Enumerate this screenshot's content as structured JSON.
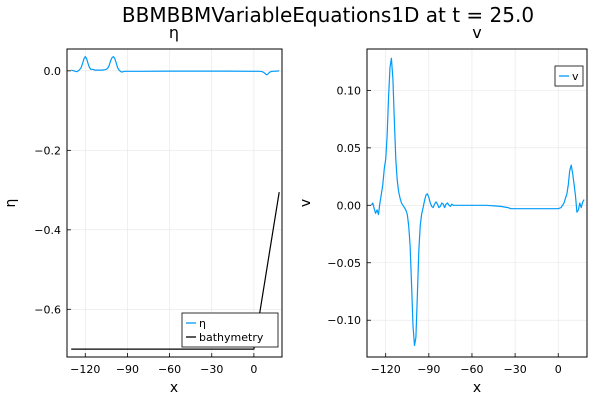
{
  "figure": {
    "title": "BBMBBMVariableEquations1D at t = 25.0"
  },
  "colors": {
    "series": "#009af9",
    "bathymetry": "#000000",
    "grid": "#e6e6e6",
    "frame": "#000000"
  },
  "chart_data": [
    {
      "type": "line",
      "title": "η",
      "xlabel": "x",
      "ylabel": "η",
      "xlim": [
        -133,
        20
      ],
      "ylim": [
        -0.72,
        0.055
      ],
      "xticks": [
        -120,
        -90,
        -60,
        -30,
        0
      ],
      "xtick_labels": [
        "−120",
        "−90",
        "−60",
        "−30",
        "0"
      ],
      "yticks": [
        0,
        -0.2,
        -0.4,
        -0.6
      ],
      "ytick_labels": [
        "0.0",
        "−0.2",
        "−0.4",
        "−0.6"
      ],
      "grid": true,
      "legend_position": "bottom-right",
      "series": [
        {
          "name": "η",
          "color": "#009af9",
          "x": [
            -130,
            -128,
            -126,
            -125,
            -124,
            -123,
            -122,
            -121,
            -120,
            -119,
            -118,
            -117,
            -116,
            -115,
            -114,
            -113,
            -112,
            -110,
            -108,
            -106,
            -105,
            -104,
            -103,
            -102,
            -101,
            -100,
            -99,
            -98,
            -97,
            -96,
            -95,
            -94,
            -93,
            -92,
            -90,
            -80,
            -60,
            -40,
            -20,
            0,
            2,
            4,
            6,
            7,
            8,
            9,
            10,
            11,
            12,
            13,
            14,
            16,
            18
          ],
          "y": [
            0.002,
            0.0,
            -0.002,
            0.0,
            0.003,
            0.008,
            0.018,
            0.03,
            0.036,
            0.03,
            0.018,
            0.008,
            0.004,
            0.004,
            0.003,
            0.002,
            0.002,
            0.002,
            0.002,
            0.003,
            0.004,
            0.007,
            0.014,
            0.025,
            0.033,
            0.036,
            0.031,
            0.02,
            0.008,
            0.002,
            -0.001,
            -0.003,
            -0.002,
            -0.001,
            -0.001,
            -0.001,
            -0.0005,
            -0.0005,
            -0.0005,
            -0.001,
            -0.001,
            -0.001,
            -0.002,
            -0.004,
            -0.007,
            -0.01,
            -0.008,
            -0.004,
            -0.002,
            -0.001,
            -0.001,
            -0.0005,
            0.0
          ]
        },
        {
          "name": "bathymetry",
          "color": "#000000",
          "x": [
            -130,
            0,
            18
          ],
          "y": [
            -0.7,
            -0.7,
            -0.305
          ]
        }
      ]
    },
    {
      "type": "line",
      "title": "v",
      "xlabel": "x",
      "ylabel": "v",
      "xlim": [
        -133,
        20
      ],
      "ylim": [
        -0.132,
        0.136
      ],
      "xticks": [
        -120,
        -90,
        -60,
        -30,
        0
      ],
      "xtick_labels": [
        "−120",
        "−90",
        "−60",
        "−30",
        "0"
      ],
      "yticks": [
        0.1,
        0.05,
        0,
        -0.05,
        -0.1
      ],
      "ytick_labels": [
        "0.10",
        "0.05",
        "0.00",
        "−0.05",
        "−0.10"
      ],
      "grid": true,
      "legend_position": "top-right",
      "series": [
        {
          "name": "v",
          "color": "#009af9",
          "x": [
            -130,
            -129,
            -128,
            -127,
            -126,
            -125,
            -124,
            -123,
            -122,
            -121,
            -120,
            -119,
            -118,
            -117,
            -116,
            -115,
            -114,
            -113,
            -112,
            -111,
            -110,
            -109,
            -108,
            -107,
            -106,
            -105,
            -104,
            -103,
            -102,
            -101,
            -100,
            -99,
            -98,
            -97,
            -96,
            -95,
            -94,
            -93,
            -92,
            -91,
            -90,
            -89,
            -88,
            -87,
            -86,
            -85,
            -84,
            -83,
            -82,
            -81,
            -80,
            -79,
            -78,
            -77,
            -76,
            -75,
            -74,
            -73,
            -72,
            -70,
            -60,
            -50,
            -40,
            -35,
            -33,
            -30,
            -20,
            -10,
            0,
            2,
            4,
            5,
            6,
            7,
            8,
            9,
            10,
            11,
            12,
            13,
            14,
            15,
            16,
            17,
            18
          ],
          "y": [
            0.0,
            0.002,
            -0.003,
            -0.007,
            -0.004,
            -0.008,
            0.002,
            0.01,
            0.018,
            0.032,
            0.04,
            0.06,
            0.095,
            0.12,
            0.128,
            0.11,
            0.075,
            0.04,
            0.022,
            0.012,
            0.006,
            0.002,
            0.0,
            -0.002,
            -0.004,
            -0.008,
            -0.018,
            -0.035,
            -0.07,
            -0.105,
            -0.122,
            -0.115,
            -0.08,
            -0.04,
            -0.018,
            -0.008,
            -0.002,
            0.004,
            0.009,
            0.01,
            0.007,
            0.002,
            -0.001,
            -0.002,
            0.001,
            0.003,
            0.001,
            -0.002,
            -0.001,
            0.002,
            0.001,
            -0.002,
            0.001,
            0.002,
            0.0,
            -0.001,
            0.001,
            0.0,
            0.0,
            0.0,
            0.0,
            0.0,
            -0.001,
            -0.002,
            -0.003,
            -0.003,
            -0.003,
            -0.003,
            -0.003,
            -0.002,
            0.002,
            0.006,
            0.01,
            0.018,
            0.03,
            0.035,
            0.028,
            0.018,
            0.008,
            -0.006,
            -0.004,
            0.002,
            -0.002,
            0.003,
            0.005
          ]
        }
      ]
    }
  ]
}
